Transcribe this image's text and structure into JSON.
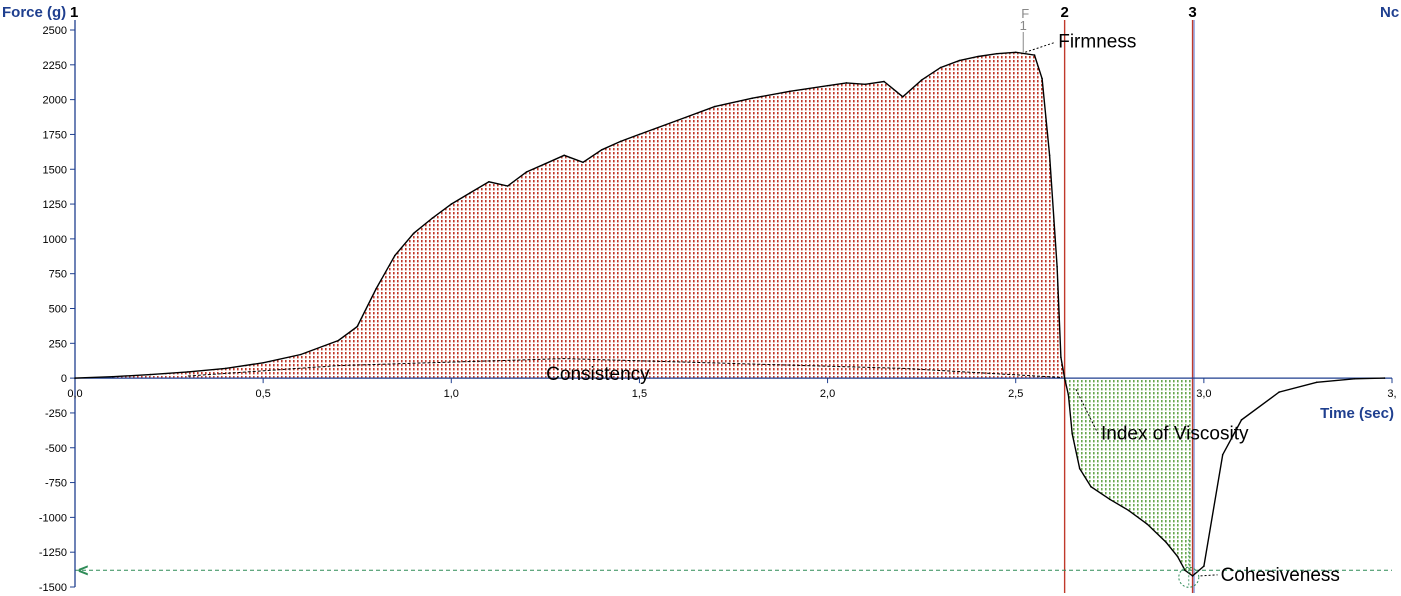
{
  "chart_data": {
    "type": "line",
    "ylabel": "Force (g)",
    "xlabel": "Time (sec)",
    "corner_label": "Nc",
    "xlim": [
      0,
      3.5
    ],
    "ylim": [
      -1500,
      2500
    ],
    "y_ticks": [
      2500,
      2250,
      2000,
      1750,
      1500,
      1250,
      1000,
      750,
      500,
      250,
      0,
      -250,
      -500,
      -750,
      -1000,
      -1250,
      -1500
    ],
    "x_ticks": [
      {
        "value": 0.0,
        "label": "0,0"
      },
      {
        "value": 0.5,
        "label": "0,5"
      },
      {
        "value": 1.0,
        "label": "1,0"
      },
      {
        "value": 1.5,
        "label": "1,5"
      },
      {
        "value": 2.0,
        "label": "2,0"
      },
      {
        "value": 2.5,
        "label": "2,5"
      },
      {
        "value": 3.0,
        "label": "3,0"
      },
      {
        "value": 3.5,
        "label": "3,"
      }
    ],
    "series": [
      {
        "x": [
          0.0,
          0.1,
          0.2,
          0.3,
          0.4,
          0.5,
          0.6,
          0.7,
          0.75,
          0.8,
          0.85,
          0.9,
          0.95,
          1.0,
          1.05,
          1.1,
          1.15,
          1.2,
          1.25,
          1.3,
          1.35,
          1.4,
          1.45,
          1.5,
          1.6,
          1.7,
          1.8,
          1.9,
          2.0,
          2.05,
          2.1,
          2.15,
          2.2,
          2.25,
          2.3,
          2.35,
          2.4,
          2.45,
          2.5,
          2.55,
          2.57,
          2.59,
          2.61,
          2.62,
          2.63,
          2.64,
          2.65,
          2.67,
          2.7,
          2.75,
          2.8,
          2.85,
          2.9,
          2.93,
          2.95,
          2.97,
          3.0,
          3.05,
          3.1,
          3.2,
          3.3,
          3.4,
          3.48
        ],
        "y": [
          0,
          10,
          25,
          45,
          70,
          110,
          170,
          270,
          370,
          640,
          880,
          1040,
          1150,
          1250,
          1330,
          1410,
          1380,
          1480,
          1540,
          1600,
          1550,
          1640,
          1700,
          1750,
          1850,
          1950,
          2010,
          2060,
          2100,
          2120,
          2110,
          2130,
          2020,
          2140,
          2230,
          2280,
          2310,
          2330,
          2340,
          2320,
          2150,
          1600,
          800,
          150,
          0,
          -120,
          -400,
          -650,
          -780,
          -870,
          -950,
          -1050,
          -1180,
          -1280,
          -1380,
          -1420,
          -1350,
          -550,
          -300,
          -100,
          -30,
          -5,
          0
        ]
      }
    ],
    "areas": [
      {
        "name": "Consistency",
        "from": 0.0,
        "to": 2.63,
        "color": "#c0392b"
      },
      {
        "name": "Index of Viscosity",
        "from": 2.63,
        "to": 2.97,
        "color": "#6aa84f"
      }
    ],
    "markers": [
      {
        "label": "2",
        "x": 2.63,
        "color": "#c0392b"
      },
      {
        "label": "3",
        "x": 2.97,
        "color": "#c0392b"
      }
    ],
    "start_marker": "1",
    "peak_marker": {
      "letter": "F",
      "num": "1"
    },
    "annotations": [
      {
        "text": "Firmness",
        "x": 2.52,
        "y": 2340
      },
      {
        "text": "Consistency",
        "x": 1.3,
        "y": 130
      },
      {
        "text": "Index of Viscosity",
        "x": 2.7,
        "y": -800
      },
      {
        "text": "Cohesiveness",
        "x": 2.97,
        "y": -1420
      }
    ],
    "baseline_level": -1380,
    "baseline_arrow": "<",
    "grid": false,
    "colors": {
      "axis_title": "#1f3f8f",
      "curve": "#000000",
      "positive_fill": "#c0392b",
      "negative_fill": "#6aa84f",
      "baseline": "#2e8b57"
    }
  }
}
